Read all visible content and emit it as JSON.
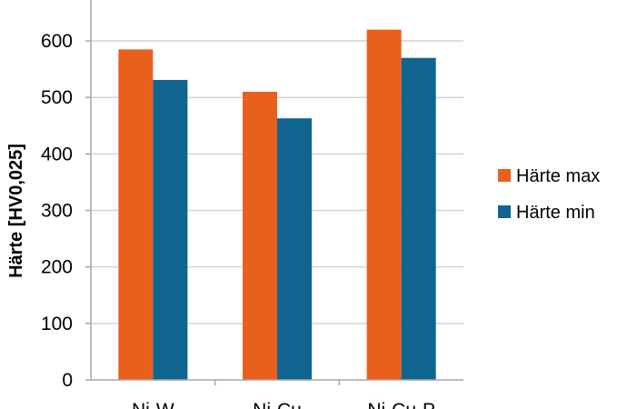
{
  "chart_data": {
    "type": "bar",
    "title": "",
    "xlabel": "",
    "ylabel": "Härte [HV0,025]",
    "categories": [
      "Ni-W",
      "Ni-Cu",
      "Ni-Cu-P"
    ],
    "series": [
      {
        "name": "Härte max",
        "color": "#e8601c",
        "values": [
          585,
          510,
          620
        ]
      },
      {
        "name": "Härte min",
        "color": "#0f6490",
        "values": [
          531,
          463,
          570
        ]
      }
    ],
    "ylim": [
      0,
      650
    ],
    "yticks": [
      0,
      100,
      200,
      300,
      400,
      500,
      600
    ],
    "grid": true,
    "legend": "right"
  }
}
